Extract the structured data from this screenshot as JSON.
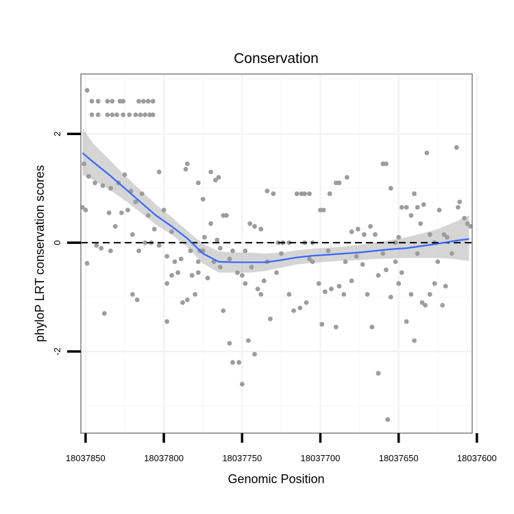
{
  "chart_data": {
    "type": "scatter",
    "title": "Conservation",
    "xlabel": "Genomic Position",
    "ylabel": "phyloP LRT conservation scores",
    "x_reversed": true,
    "xlim": [
      18037853,
      18037603
    ],
    "ylim": [
      -3.5,
      3.1
    ],
    "xticks": [
      18037850,
      18037800,
      18037750,
      18037700,
      18037650,
      18037600
    ],
    "xtick_labels": [
      "18037850",
      "18037800",
      "18037750",
      "18037700",
      "18037650",
      "18037600"
    ],
    "yticks": [
      -2,
      0,
      2
    ],
    "ytick_labels": [
      "-2",
      "0",
      "2"
    ],
    "reference_line": {
      "y": 0,
      "style": "dashed",
      "color": "#000000"
    },
    "grid": true,
    "point_color": "#9c9c9c",
    "smooth_color": "#3366ff",
    "ribbon_color": "#b3b3b3",
    "points": [
      [
        18037849,
        2.8
      ],
      [
        18037846,
        2.6
      ],
      [
        18037842,
        2.6
      ],
      [
        18037836,
        2.6
      ],
      [
        18037833,
        2.6
      ],
      [
        18037828,
        2.6
      ],
      [
        18037826,
        2.6
      ],
      [
        18037816,
        2.6
      ],
      [
        18037813,
        2.6
      ],
      [
        18037810,
        2.6
      ],
      [
        18037807,
        2.6
      ],
      [
        18037846,
        2.35
      ],
      [
        18037842,
        2.35
      ],
      [
        18037836,
        2.35
      ],
      [
        18037833,
        2.35
      ],
      [
        18037830,
        2.35
      ],
      [
        18037826,
        2.35
      ],
      [
        18037822,
        2.35
      ],
      [
        18037818,
        2.35
      ],
      [
        18037815,
        2.35
      ],
      [
        18037812,
        2.35
      ],
      [
        18037809,
        2.35
      ],
      [
        18037807,
        2.35
      ],
      [
        18037851,
        1.45
      ],
      [
        18037848,
        1.22
      ],
      [
        18037844,
        1.1
      ],
      [
        18037839,
        1.05
      ],
      [
        18037834,
        1.0
      ],
      [
        18037829,
        1.1
      ],
      [
        18037825,
        1.25
      ],
      [
        18037821,
        0.95
      ],
      [
        18037818,
        0.75
      ],
      [
        18037814,
        0.9
      ],
      [
        18037810,
        0.5
      ],
      [
        18037806,
        0.25
      ],
      [
        18037803,
        1.3
      ],
      [
        18037800,
        0.6
      ],
      [
        18037852,
        0.65
      ],
      [
        18037850,
        0.6
      ],
      [
        18037843,
        -0.05
      ],
      [
        18037840,
        -0.1
      ],
      [
        18037835,
        0.55
      ],
      [
        18037831,
        0.3
      ],
      [
        18037827,
        0.55
      ],
      [
        18037823,
        0.6
      ],
      [
        18037820,
        0.15
      ],
      [
        18037816,
        -0.15
      ],
      [
        18037812,
        0.0
      ],
      [
        18037808,
        0.0
      ],
      [
        18037849,
        -0.38
      ],
      [
        18037838,
        -1.3
      ],
      [
        18037834,
        -0.15
      ],
      [
        18037820,
        -0.95
      ],
      [
        18037817,
        -1.05
      ],
      [
        18037803,
        -0.05
      ],
      [
        18037798,
        -0.25
      ],
      [
        18037798,
        -0.75
      ],
      [
        18037798,
        -1.45
      ],
      [
        18037795,
        0.2
      ],
      [
        18037795,
        -0.6
      ],
      [
        18037793,
        -0.35
      ],
      [
        18037791,
        -0.55
      ],
      [
        18037789,
        -0.3
      ],
      [
        18037788,
        -1.1
      ],
      [
        18037785,
        -1.05
      ],
      [
        18037783,
        -0.15
      ],
      [
        18037782,
        -0.6
      ],
      [
        18037780,
        -0.95
      ],
      [
        18037778,
        -0.55
      ],
      [
        18037778,
        -0.35
      ],
      [
        18037777,
        -0.15
      ],
      [
        18037786,
        1.35
      ],
      [
        18037785,
        1.45
      ],
      [
        18037778,
        1.1
      ],
      [
        18037775,
        0.8
      ],
      [
        18037770,
        1.3
      ],
      [
        18037767,
        1.15
      ],
      [
        18037765,
        1.2
      ],
      [
        18037762,
        0.5
      ],
      [
        18037760,
        0.5
      ],
      [
        18037774,
        0.1
      ],
      [
        18037770,
        0.35
      ],
      [
        18037766,
        0.05
      ],
      [
        18037764,
        -0.1
      ],
      [
        18037775,
        -0.15
      ],
      [
        18037772,
        -0.65
      ],
      [
        18037768,
        -0.35
      ],
      [
        18037764,
        -0.45
      ],
      [
        18037762,
        -1.25
      ],
      [
        18037758,
        -0.3
      ],
      [
        18037756,
        -0.15
      ],
      [
        18037753,
        -0.55
      ],
      [
        18037750,
        -0.6
      ],
      [
        18037748,
        -0.15
      ],
      [
        18037758,
        -1.85
      ],
      [
        18037756,
        -2.2
      ],
      [
        18037752,
        -2.2
      ],
      [
        18037750,
        -2.6
      ],
      [
        18037748,
        -0.75
      ],
      [
        18037746,
        -1.8
      ],
      [
        18037744,
        -0.45
      ],
      [
        18037742,
        -2.05
      ],
      [
        18037740,
        -0.85
      ],
      [
        18037738,
        -0.95
      ],
      [
        18037736,
        -0.7
      ],
      [
        18037734,
        -0.35
      ],
      [
        18037732,
        -1.4
      ],
      [
        18037745,
        0.35
      ],
      [
        18037742,
        0.3
      ],
      [
        18037738,
        0.25
      ],
      [
        18037734,
        0.95
      ],
      [
        18037730,
        0.9
      ],
      [
        18037727,
        0.0
      ],
      [
        18037724,
        0.0
      ],
      [
        18037720,
        0.0
      ],
      [
        18037715,
        0.9
      ],
      [
        18037712,
        0.9
      ],
      [
        18037710,
        0.9
      ],
      [
        18037707,
        0.9
      ],
      [
        18037728,
        -0.55
      ],
      [
        18037725,
        -0.2
      ],
      [
        18037720,
        -0.95
      ],
      [
        18037717,
        -1.25
      ],
      [
        18037713,
        -1.2
      ],
      [
        18037709,
        -1.1
      ],
      [
        18037707,
        -0.3
      ],
      [
        18037705,
        -0.35
      ],
      [
        18037701,
        -0.75
      ],
      [
        18037699,
        -1.5
      ],
      [
        18037697,
        -0.9
      ],
      [
        18037695,
        -0.15
      ],
      [
        18037693,
        -0.85
      ],
      [
        18037690,
        -1.55
      ],
      [
        18037688,
        -0.8
      ],
      [
        18037685,
        -0.95
      ],
      [
        18037710,
        0.0
      ],
      [
        18037705,
        0.0
      ],
      [
        18037700,
        0.6
      ],
      [
        18037698,
        0.6
      ],
      [
        18037694,
        0.9
      ],
      [
        18037690,
        1.1
      ],
      [
        18037688,
        1.1
      ],
      [
        18037683,
        1.2
      ],
      [
        18037680,
        0.2
      ],
      [
        18037676,
        0.25
      ],
      [
        18037672,
        0.15
      ],
      [
        18037668,
        0.3
      ],
      [
        18037665,
        0.15
      ],
      [
        18037684,
        -0.35
      ],
      [
        18037680,
        -0.7
      ],
      [
        18037677,
        -0.25
      ],
      [
        18037673,
        -0.4
      ],
      [
        18037670,
        -0.95
      ],
      [
        18037667,
        -1.55
      ],
      [
        18037663,
        -0.6
      ],
      [
        18037660,
        -0.2
      ],
      [
        18037658,
        -0.5
      ],
      [
        18037655,
        -1.0
      ],
      [
        18037652,
        -0.35
      ],
      [
        18037660,
        1.45
      ],
      [
        18037658,
        1.45
      ],
      [
        18037655,
        1.0
      ],
      [
        18037652,
        0.0
      ],
      [
        18037650,
        0.1
      ],
      [
        18037648,
        0.65
      ],
      [
        18037645,
        0.65
      ],
      [
        18037642,
        0.5
      ],
      [
        18037640,
        0.9
      ],
      [
        18037638,
        0.65
      ],
      [
        18037636,
        0.35
      ],
      [
        18037634,
        0.7
      ],
      [
        18037632,
        1.65
      ],
      [
        18037663,
        -2.4
      ],
      [
        18037657,
        -3.25
      ],
      [
        18037650,
        -0.75
      ],
      [
        18037648,
        -0.55
      ],
      [
        18037645,
        -1.45
      ],
      [
        18037642,
        -0.95
      ],
      [
        18037640,
        -1.8
      ],
      [
        18037638,
        -0.2
      ],
      [
        18037635,
        -1.1
      ],
      [
        18037633,
        -1.15
      ],
      [
        18037630,
        -0.95
      ],
      [
        18037627,
        -0.75
      ],
      [
        18037625,
        -0.35
      ],
      [
        18037622,
        -1.15
      ],
      [
        18037620,
        -0.8
      ],
      [
        18037630,
        0.15
      ],
      [
        18037627,
        0.0
      ],
      [
        18037624,
        0.6
      ],
      [
        18037621,
        0.15
      ],
      [
        18037619,
        0.1
      ],
      [
        18037616,
        -0.2
      ],
      [
        18037613,
        1.75
      ],
      [
        18037612,
        0.65
      ],
      [
        18037611,
        0.75
      ],
      [
        18037608,
        0.45
      ],
      [
        18037606,
        0.35
      ],
      [
        18037604,
        0.3
      ]
    ],
    "smooth_line": {
      "x": [
        18037852,
        18037845,
        18037835,
        18037825,
        18037815,
        18037805,
        18037795,
        18037785,
        18037775,
        18037765,
        18037755,
        18037745,
        18037735,
        18037725,
        18037715,
        18037705,
        18037695,
        18037685,
        18037675,
        18037665,
        18037655,
        18037645,
        18037635,
        18037625,
        18037615,
        18037605
      ],
      "y": [
        1.65,
        1.48,
        1.25,
        1.0,
        0.75,
        0.5,
        0.3,
        0.08,
        -0.2,
        -0.35,
        -0.36,
        -0.36,
        -0.36,
        -0.32,
        -0.27,
        -0.24,
        -0.22,
        -0.2,
        -0.18,
        -0.15,
        -0.12,
        -0.1,
        -0.06,
        -0.02,
        0.03,
        0.07
      ],
      "lower": [
        1.25,
        1.15,
        0.98,
        0.78,
        0.56,
        0.33,
        0.15,
        -0.08,
        -0.38,
        -0.55,
        -0.55,
        -0.55,
        -0.52,
        -0.46,
        -0.4,
        -0.37,
        -0.35,
        -0.33,
        -0.32,
        -0.3,
        -0.29,
        -0.28,
        -0.28,
        -0.28,
        -0.3,
        -0.34
      ],
      "upper": [
        2.1,
        1.82,
        1.53,
        1.24,
        0.97,
        0.7,
        0.47,
        0.22,
        -0.02,
        -0.16,
        -0.18,
        -0.18,
        -0.2,
        -0.18,
        -0.14,
        -0.11,
        -0.09,
        -0.07,
        -0.04,
        0.0,
        0.05,
        0.1,
        0.17,
        0.25,
        0.37,
        0.5
      ]
    }
  }
}
